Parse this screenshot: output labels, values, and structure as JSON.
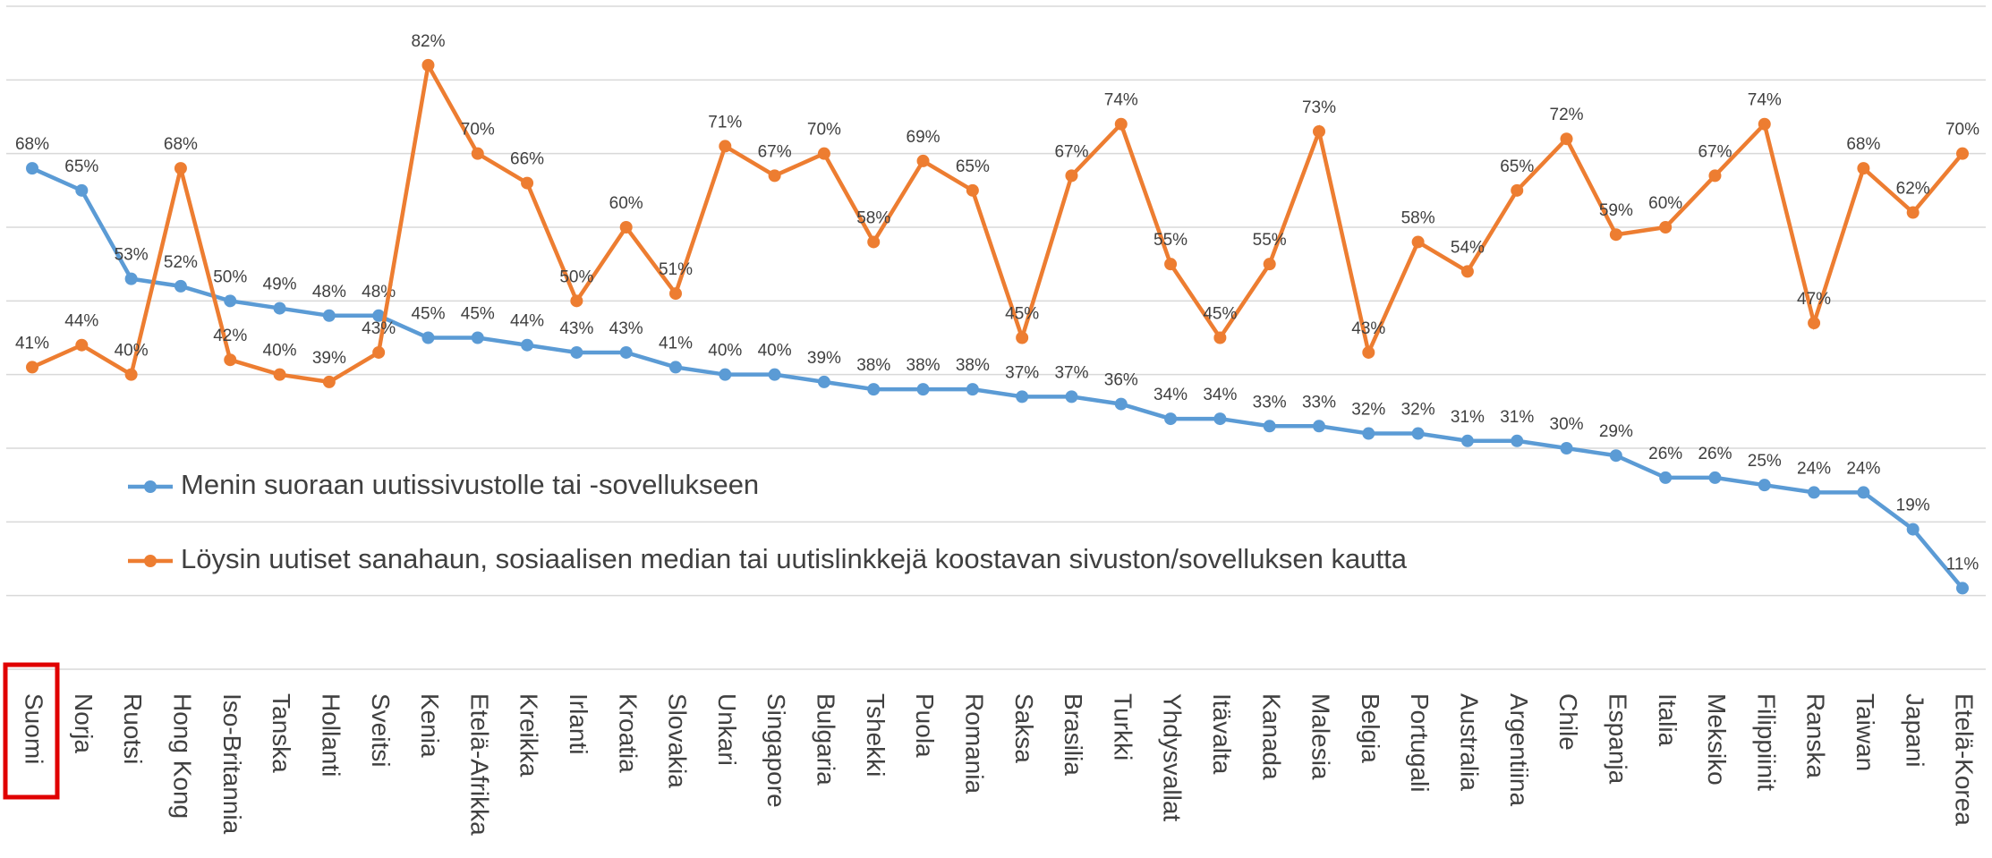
{
  "chart_data": {
    "type": "line",
    "categories": [
      "Suomi",
      "Norja",
      "Ruotsi",
      "Hong Kong",
      "Iso-Britannia",
      "Tanska",
      "Hollanti",
      "Sveitsi",
      "Kenia",
      "Etelä-Afrikka",
      "Kreikka",
      "Irlanti",
      "Kroatia",
      "Slovakia",
      "Unkari",
      "Singapore",
      "Bulgaria",
      "Tshekki",
      "Puola",
      "Romania",
      "Saksa",
      "Brasilia",
      "Turkki",
      "Yhdysvallat",
      "Itävalta",
      "Kanada",
      "Malesia",
      "Belgia",
      "Portugali",
      "Australia",
      "Argentiina",
      "Chile",
      "Espanja",
      "Italia",
      "Meksiko",
      "Filippiinit",
      "Ranska",
      "Taiwan",
      "Japani",
      "Etelä-Korea"
    ],
    "series": [
      {
        "name": "Menin suoraan uutissivustolle tai -sovellukseen",
        "color": "#5b9bd5",
        "values": [
          68,
          65,
          53,
          52,
          50,
          49,
          48,
          48,
          45,
          45,
          44,
          43,
          43,
          41,
          40,
          40,
          39,
          38,
          38,
          38,
          37,
          37,
          36,
          34,
          34,
          33,
          33,
          32,
          32,
          31,
          31,
          30,
          29,
          26,
          26,
          25,
          24,
          24,
          19,
          11
        ],
        "value_labels": [
          "68%",
          "65%",
          "53%",
          "52%",
          "50%",
          "49%",
          "48%",
          "48%",
          "45%",
          "45%",
          "44%",
          "43%",
          "43%",
          "41%",
          "40%",
          "40%",
          "39%",
          "38%",
          "38%",
          "38%",
          "37%",
          "37%",
          "36%",
          "34%",
          "34%",
          "33%",
          "33%",
          "32%",
          "32%",
          "31%",
          "31%",
          "30%",
          "29%",
          "26%",
          "26%",
          "25%",
          "24%",
          "24%",
          "19%",
          "11%"
        ]
      },
      {
        "name": "Löysin uutiset sanahaun, sosiaalisen median tai uutislinkkejä koostavan sivuston/sovelluksen kautta",
        "color": "#ed7d31",
        "values": [
          41,
          44,
          40,
          68,
          42,
          40,
          39,
          43,
          82,
          70,
          66,
          50,
          60,
          51,
          71,
          67,
          70,
          58,
          69,
          65,
          45,
          67,
          74,
          55,
          45,
          55,
          73,
          43,
          58,
          54,
          65,
          72,
          59,
          60,
          67,
          74,
          47,
          68,
          62,
          70
        ],
        "value_labels": [
          "41%",
          "44%",
          "40%",
          "68%",
          "42%",
          "40%",
          "39%",
          "43%",
          "82%",
          "70%",
          "66%",
          "50%",
          "60%",
          "51%",
          "71%",
          "67%",
          "70%",
          "58%",
          "69%",
          "65%",
          "45%",
          "67%",
          "74%",
          "55%",
          "45%",
          "55%",
          "73%",
          "43%",
          "58%",
          "54%",
          "65%",
          "72%",
          "59%",
          "60%",
          "67%",
          "74%",
          "47%",
          "68%",
          "62%",
          "70%"
        ]
      }
    ],
    "ylim": [
      0,
      90
    ],
    "yticks": [
      0,
      10,
      20,
      30,
      40,
      50,
      60,
      70,
      80,
      90
    ],
    "grid": true
  }
}
